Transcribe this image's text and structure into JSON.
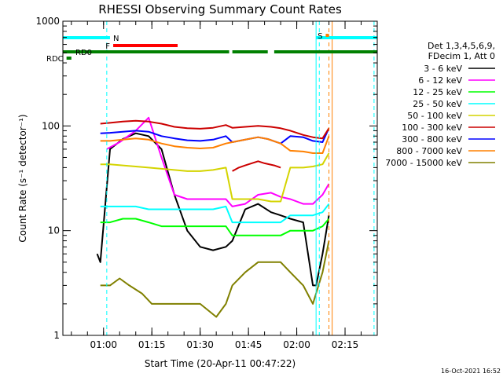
{
  "chart_data": {
    "type": "line",
    "title": "RHESSI Observing Summary Count Rates",
    "xlabel": "Start Time (20-Apr-11 00:47:22)",
    "ylabel": "Count Rate (s⁻¹ detector⁻¹)",
    "yscale": "log",
    "ylim": [
      1,
      1000
    ],
    "y_ticks": [
      {
        "value": 1,
        "label": "1"
      },
      {
        "value": 10,
        "label": "10"
      },
      {
        "value": 100,
        "label": "100"
      },
      {
        "value": 1000,
        "label": "1000"
      }
    ],
    "xlim": [
      "00:47:22",
      "02:25"
    ],
    "x_ticks": [
      {
        "label": "01:00",
        "value": "01:00"
      },
      {
        "label": "01:15",
        "value": "01:15"
      },
      {
        "label": "01:30",
        "value": "01:30"
      },
      {
        "label": "01:45",
        "value": "01:45"
      },
      {
        "label": "02:00",
        "value": "02:00"
      },
      {
        "label": "02:15",
        "value": "02:15"
      }
    ],
    "legend_header": [
      "Det 1,3,4,5,6,9,",
      "FDecim 1, Att 0"
    ],
    "legend_position": "right",
    "grid": false,
    "series": [
      {
        "name": "3 - 6 keV",
        "color": "#000000",
        "x": [
          "00:58",
          "00:59",
          "01:02",
          "01:06",
          "01:10",
          "01:14",
          "01:18",
          "01:22",
          "01:26",
          "01:30",
          "01:34",
          "01:38",
          "01:40",
          "01:44",
          "01:48",
          "01:52",
          "01:55",
          "01:58",
          "02:02",
          "02:05",
          "02:06",
          "02:08",
          "02:10"
        ],
        "values": [
          6,
          5,
          60,
          75,
          85,
          80,
          60,
          22,
          10,
          7,
          6.5,
          7,
          8,
          16,
          18,
          15,
          14,
          13,
          12,
          3,
          3,
          6,
          14
        ]
      },
      {
        "name": "6 - 12 keV",
        "color": "#ff00ff",
        "x": [
          "01:01",
          "01:05",
          "01:10",
          "01:14",
          "01:18",
          "01:22",
          "01:26",
          "01:30",
          "01:34",
          "01:38",
          "01:40",
          "01:44",
          "01:48",
          "01:52",
          "01:55",
          "01:58",
          "02:02",
          "02:05",
          "02:08",
          "02:10"
        ],
        "values": [
          60,
          70,
          90,
          120,
          50,
          22,
          20,
          20,
          20,
          20,
          17,
          18,
          22,
          23,
          21,
          20,
          18,
          18,
          22,
          28
        ]
      },
      {
        "name": "12 - 25 keV",
        "color": "#00ff00",
        "x": [
          "00:59",
          "01:02",
          "01:06",
          "01:10",
          "01:14",
          "01:18",
          "01:22",
          "01:26",
          "01:30",
          "01:34",
          "01:38",
          "01:40",
          "01:44",
          "01:48",
          "01:52",
          "01:55",
          "01:58",
          "02:02",
          "02:05",
          "02:08",
          "02:10"
        ],
        "values": [
          12,
          12,
          13,
          13,
          12,
          11,
          11,
          11,
          11,
          11,
          11,
          9,
          9,
          9,
          9,
          9,
          10,
          10,
          10,
          11,
          13
        ]
      },
      {
        "name": "25 - 50 keV",
        "color": "#00ffff",
        "x": [
          "00:59",
          "01:02",
          "01:06",
          "01:10",
          "01:14",
          "01:18",
          "01:22",
          "01:26",
          "01:30",
          "01:34",
          "01:38",
          "01:40",
          "01:44",
          "01:48",
          "01:52",
          "01:55",
          "01:58",
          "02:02",
          "02:05",
          "02:08",
          "02:10"
        ],
        "values": [
          17,
          17,
          17,
          17,
          16,
          16,
          16,
          16,
          16,
          16,
          17,
          12,
          12,
          12,
          12,
          12,
          14,
          14,
          14,
          15,
          18
        ]
      },
      {
        "name": "50 - 100 keV",
        "color": "#d4d400",
        "x": [
          "00:59",
          "01:02",
          "01:06",
          "01:10",
          "01:14",
          "01:18",
          "01:22",
          "01:26",
          "01:30",
          "01:34",
          "01:38",
          "01:40",
          "01:44",
          "01:48",
          "01:52",
          "01:55",
          "01:58",
          "02:02",
          "02:05",
          "02:08",
          "02:10"
        ],
        "values": [
          43,
          43,
          42,
          41,
          40,
          39,
          38,
          37,
          37,
          38,
          40,
          20,
          20,
          20,
          19,
          19,
          40,
          40,
          41,
          43,
          55
        ]
      },
      {
        "name": "100 - 300 keV",
        "color": "#cc0000",
        "x": [
          "01:40",
          "01:42",
          "01:44",
          "01:46",
          "01:48",
          "01:50",
          "01:53",
          "01:55"
        ],
        "values": [
          37,
          40,
          42,
          44,
          46,
          44,
          42,
          40
        ]
      },
      {
        "name": "300 - 800 keV",
        "color": "#0000ff",
        "x": [
          "00:59",
          "01:02",
          "01:06",
          "01:10",
          "01:14",
          "01:18",
          "01:22",
          "01:26",
          "01:30",
          "01:34",
          "01:38",
          "01:40",
          "01:42",
          "01:45",
          "01:48",
          "01:51",
          "01:55",
          "01:58",
          "02:02",
          "02:05",
          "02:08",
          "02:10"
        ],
        "values": [
          85,
          86,
          88,
          90,
          88,
          80,
          76,
          73,
          72,
          74,
          80,
          70,
          72,
          75,
          78,
          75,
          68,
          80,
          78,
          72,
          70,
          95
        ]
      },
      {
        "name": "800 - 7000 keV",
        "color": "#ff8000",
        "x": [
          "00:59",
          "01:02",
          "01:06",
          "01:10",
          "01:14",
          "01:18",
          "01:22",
          "01:26",
          "01:30",
          "01:34",
          "01:38",
          "01:40",
          "01:42",
          "01:45",
          "01:48",
          "01:51",
          "01:55",
          "01:58",
          "02:02",
          "02:05",
          "02:08",
          "02:10"
        ],
        "values": [
          72,
          72,
          74,
          76,
          74,
          68,
          64,
          62,
          61,
          62,
          68,
          70,
          72,
          75,
          78,
          75,
          68,
          58,
          57,
          55,
          55,
          80
        ]
      },
      {
        "name": "7000 - 15000 keV",
        "color": "#808000",
        "x": [
          "00:59",
          "01:02",
          "01:05",
          "01:08",
          "01:12",
          "01:15",
          "01:20",
          "01:25",
          "01:30",
          "01:35",
          "01:38",
          "01:40",
          "01:44",
          "01:48",
          "01:52",
          "01:55",
          "01:58",
          "02:02",
          "02:05",
          "02:08",
          "02:10"
        ],
        "values": [
          3,
          3,
          3.5,
          3,
          2.5,
          2,
          2,
          2,
          2,
          1.5,
          2,
          3,
          4,
          5,
          5,
          5,
          4,
          3,
          2,
          4,
          8
        ]
      }
    ],
    "extra_curves": [
      {
        "color": "#cc0000",
        "x": [
          "00:59",
          "01:02",
          "01:06",
          "01:10",
          "01:14",
          "01:18",
          "01:22",
          "01:26",
          "01:30",
          "01:34",
          "01:38",
          "01:40",
          "01:44",
          "01:48",
          "01:52",
          "01:55",
          "01:58",
          "02:02",
          "02:05",
          "02:08",
          "02:10"
        ],
        "values": [
          105,
          107,
          110,
          112,
          110,
          105,
          98,
          95,
          94,
          96,
          102,
          96,
          98,
          100,
          98,
          95,
          90,
          82,
          78,
          76,
          95
        ]
      }
    ],
    "state_bars": [
      {
        "label": "N",
        "color": "#00ffff",
        "segments": [
          [
            "00:47:22",
            "01:02"
          ],
          [
            "02:06",
            "02:25"
          ]
        ]
      },
      {
        "label": "F",
        "color": "#ff0000",
        "segments": [
          [
            "01:03",
            "01:23"
          ]
        ]
      },
      {
        "label": "RD0",
        "color": "#008000",
        "segments": [
          [
            "00:47:22",
            "01:39"
          ],
          [
            "01:40",
            "01:51"
          ],
          [
            "01:53",
            "02:25"
          ]
        ]
      },
      {
        "label": "RDC",
        "color": "#008000",
        "segments": [
          [
            "00:48:30",
            "00:50"
          ]
        ]
      },
      {
        "label": "S",
        "color": "#ff8000",
        "segments": [
          [
            "02:09",
            "02:10"
          ]
        ]
      }
    ],
    "vlines": [
      {
        "x": "00:47:22",
        "color": "#00ffff",
        "style": "solid"
      },
      {
        "x": "01:01",
        "color": "#00ffff",
        "style": "dashed"
      },
      {
        "x": "02:06",
        "color": "#00ffff",
        "style": "solid"
      },
      {
        "x": "02:07",
        "color": "#00ffff",
        "style": "dashed"
      },
      {
        "x": "02:10",
        "color": "#ff8000",
        "style": "dashed"
      },
      {
        "x": "02:11",
        "color": "#ff8000",
        "style": "solid"
      },
      {
        "x": "02:24",
        "color": "#00ffff",
        "style": "dashed"
      }
    ]
  },
  "footer_timestamp": "16-Oct-2021 16:52"
}
